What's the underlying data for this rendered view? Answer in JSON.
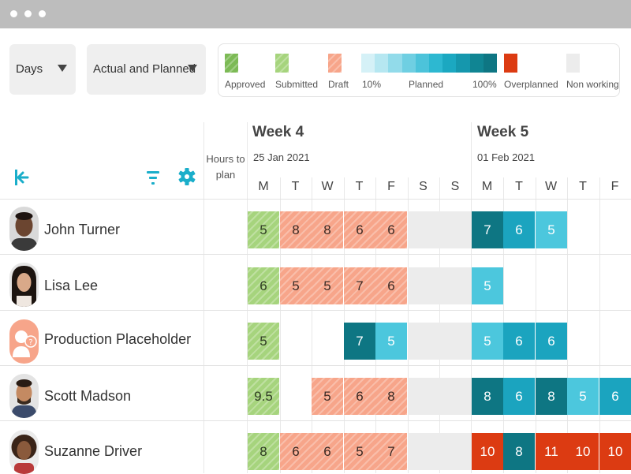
{
  "window": {
    "controls": [
      "dot",
      "dot",
      "dot"
    ]
  },
  "toolbar": {
    "period_select": {
      "value": "Days"
    },
    "view_select": {
      "value": "Actual and Planned"
    }
  },
  "legend": {
    "approved": "Approved",
    "submitted": "Submitted",
    "draft": "Draft",
    "planned_min": "10%",
    "planned": "Planned",
    "planned_max": "100%",
    "overplanned": "Overplanned",
    "non_working": "Non working"
  },
  "colors": {
    "approved": "#7cba55",
    "submitted": "#a6d47d",
    "draft": "#f7a58a",
    "planned_light": "#4cc7dd",
    "planned_mid": "#1ba4bf",
    "planned_dark": "#0e7683",
    "overplanned": "#dc3b12",
    "non_working": "#ececec",
    "accent": "#1aaeca"
  },
  "header": {
    "hours_to_plan": "Hours to plan",
    "weeks": [
      {
        "title": "Week 4",
        "date": "25 Jan 2021"
      },
      {
        "title": "Week 5",
        "date": "01 Feb 2021"
      }
    ],
    "days": [
      "M",
      "T",
      "W",
      "T",
      "F",
      "S",
      "S",
      "M",
      "T",
      "W",
      "T",
      "F"
    ]
  },
  "icons": {
    "collapse": "collapse-left-icon",
    "filter": "filter-icon",
    "settings": "gear-icon"
  },
  "people": [
    {
      "name": "John Turner",
      "cells": [
        {
          "value": "5",
          "status": "submitted"
        },
        {
          "value": "8",
          "status": "draft"
        },
        {
          "value": "8",
          "status": "draft"
        },
        {
          "value": "6",
          "status": "draft"
        },
        {
          "value": "6",
          "status": "draft"
        },
        {
          "value": "",
          "status": "non_working"
        },
        {
          "value": "",
          "status": "non_working"
        },
        {
          "value": "7",
          "status": "planned_dark"
        },
        {
          "value": "6",
          "status": "planned_mid"
        },
        {
          "value": "5",
          "status": "planned_light"
        },
        {
          "value": "",
          "status": "empty"
        },
        {
          "value": "",
          "status": "empty"
        }
      ]
    },
    {
      "name": "Lisa Lee",
      "cells": [
        {
          "value": "6",
          "status": "submitted"
        },
        {
          "value": "5",
          "status": "draft"
        },
        {
          "value": "5",
          "status": "draft"
        },
        {
          "value": "7",
          "status": "draft"
        },
        {
          "value": "6",
          "status": "draft"
        },
        {
          "value": "",
          "status": "non_working"
        },
        {
          "value": "",
          "status": "non_working"
        },
        {
          "value": "5",
          "status": "planned_light"
        },
        {
          "value": "",
          "status": "empty"
        },
        {
          "value": "",
          "status": "empty"
        },
        {
          "value": "",
          "status": "empty"
        },
        {
          "value": "",
          "status": "empty"
        }
      ]
    },
    {
      "name": "Production Placeholder",
      "cells": [
        {
          "value": "5",
          "status": "submitted"
        },
        {
          "value": "",
          "status": "empty"
        },
        {
          "value": "",
          "status": "empty"
        },
        {
          "value": "7",
          "status": "planned_dark"
        },
        {
          "value": "5",
          "status": "planned_light"
        },
        {
          "value": "",
          "status": "non_working"
        },
        {
          "value": "",
          "status": "non_working"
        },
        {
          "value": "5",
          "status": "planned_light"
        },
        {
          "value": "6",
          "status": "planned_mid"
        },
        {
          "value": "6",
          "status": "planned_mid"
        },
        {
          "value": "",
          "status": "empty"
        },
        {
          "value": "",
          "status": "empty"
        }
      ]
    },
    {
      "name": "Scott Madson",
      "cells": [
        {
          "value": "9.5",
          "status": "submitted"
        },
        {
          "value": "",
          "status": "empty"
        },
        {
          "value": "5",
          "status": "draft"
        },
        {
          "value": "6",
          "status": "draft"
        },
        {
          "value": "8",
          "status": "draft"
        },
        {
          "value": "",
          "status": "non_working"
        },
        {
          "value": "",
          "status": "non_working"
        },
        {
          "value": "8",
          "status": "planned_dark"
        },
        {
          "value": "6",
          "status": "planned_mid"
        },
        {
          "value": "8",
          "status": "planned_dark"
        },
        {
          "value": "5",
          "status": "planned_light"
        },
        {
          "value": "6",
          "status": "planned_mid"
        }
      ]
    },
    {
      "name": "Suzanne Driver",
      "cells": [
        {
          "value": "8",
          "status": "submitted"
        },
        {
          "value": "6",
          "status": "draft"
        },
        {
          "value": "6",
          "status": "draft"
        },
        {
          "value": "5",
          "status": "draft"
        },
        {
          "value": "7",
          "status": "draft"
        },
        {
          "value": "",
          "status": "non_working"
        },
        {
          "value": "",
          "status": "non_working"
        },
        {
          "value": "10",
          "status": "overplanned"
        },
        {
          "value": "8",
          "status": "planned_dark"
        },
        {
          "value": "11",
          "status": "overplanned"
        },
        {
          "value": "10",
          "status": "overplanned"
        },
        {
          "value": "10",
          "status": "overplanned"
        }
      ]
    }
  ]
}
